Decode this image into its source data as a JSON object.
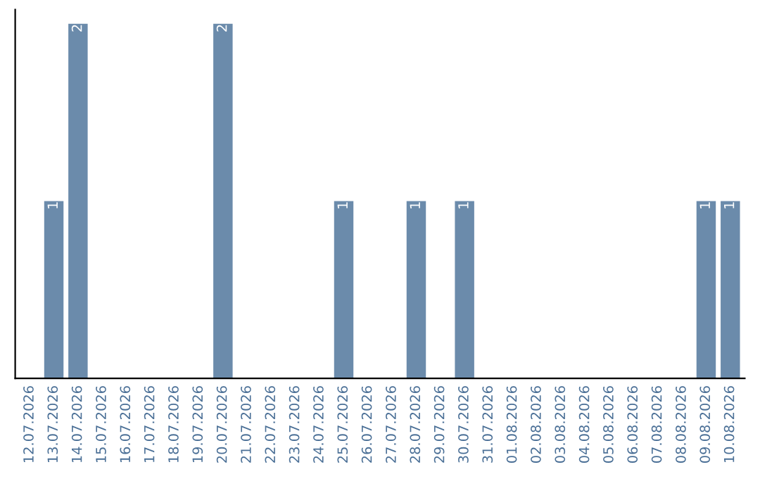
{
  "chart_data": {
    "type": "bar",
    "categories": [
      "12.07.2026",
      "13.07.2026",
      "14.07.2026",
      "15.07.2026",
      "16.07.2026",
      "17.07.2026",
      "18.07.2026",
      "19.07.2026",
      "20.07.2026",
      "21.07.2026",
      "22.07.2026",
      "23.07.2026",
      "24.07.2026",
      "25.07.2026",
      "26.07.2026",
      "27.07.2026",
      "28.07.2026",
      "29.07.2026",
      "30.07.2026",
      "31.07.2026",
      "01.08.2026",
      "02.08.2026",
      "03.08.2026",
      "04.08.2026",
      "05.08.2026",
      "06.08.2026",
      "07.08.2026",
      "08.08.2026",
      "09.08.2026",
      "10.08.2026"
    ],
    "values": [
      0,
      1,
      2,
      0,
      0,
      0,
      0,
      0,
      2,
      0,
      0,
      0,
      0,
      1,
      0,
      0,
      1,
      0,
      1,
      0,
      0,
      0,
      0,
      0,
      0,
      0,
      0,
      0,
      1,
      1
    ],
    "value_labels": [
      null,
      "1",
      "2",
      null,
      null,
      null,
      null,
      null,
      "2",
      null,
      null,
      null,
      null,
      "1",
      null,
      null,
      "1",
      null,
      "1",
      null,
      null,
      null,
      null,
      null,
      null,
      null,
      null,
      null,
      "1",
      "1"
    ],
    "color": "#6b8bab",
    "grid": false,
    "legend": false
  }
}
